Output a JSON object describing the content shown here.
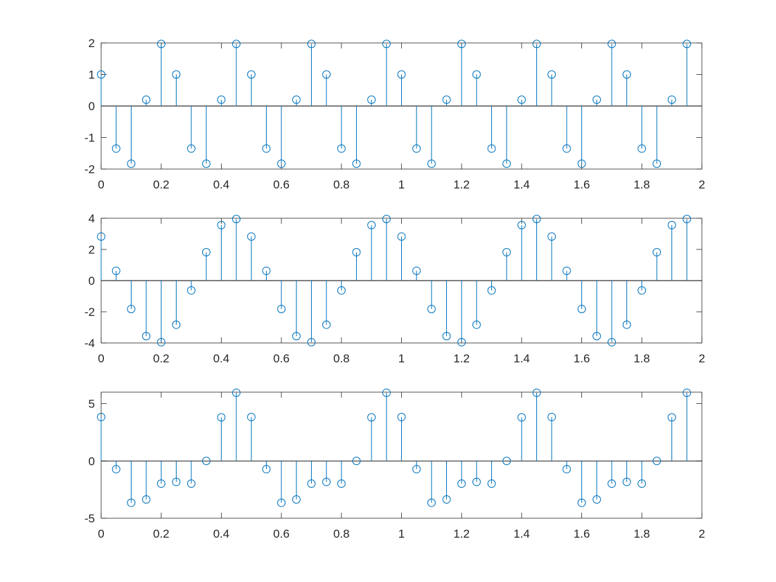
{
  "chart_data": [
    {
      "type": "stem",
      "title": "",
      "xlabel": "",
      "ylabel": "",
      "xlim": [
        0,
        2
      ],
      "ylim": [
        -2,
        2
      ],
      "xticks": [
        0,
        0.2,
        0.4,
        0.6,
        0.8,
        1,
        1.2,
        1.4,
        1.6,
        1.8,
        2
      ],
      "xtick_labels": [
        "0",
        "0.2",
        "0.4",
        "0.6",
        "0.8",
        "1",
        "1.2",
        "1.4",
        "1.6",
        "1.8",
        "2"
      ],
      "yticks": [
        -2,
        -1,
        0,
        1,
        2
      ],
      "ytick_labels": [
        "-2",
        "-1",
        "0",
        "1",
        "2"
      ],
      "grid": false,
      "series": [
        {
          "x": [
            0,
            0.05,
            0.1,
            0.15,
            0.2,
            0.25,
            0.3,
            0.35,
            0.4,
            0.45,
            0.5,
            0.55,
            0.6,
            0.65,
            0.7,
            0.75,
            0.8,
            0.85,
            0.9,
            0.95,
            1,
            1.05,
            1.1,
            1.15,
            1.2,
            1.25,
            1.3,
            1.35,
            1.4,
            1.45,
            1.5,
            1.55,
            1.6,
            1.65,
            1.7,
            1.75,
            1.8,
            1.85,
            1.9,
            1.95
          ],
          "values": [
            1,
            -1.35,
            -1.83,
            0.2,
            1.97,
            1,
            -1.35,
            -1.83,
            0.2,
            1.97,
            1,
            -1.35,
            -1.83,
            0.2,
            1.97,
            1,
            -1.35,
            -1.83,
            0.2,
            1.97,
            1,
            -1.35,
            -1.83,
            0.2,
            1.97,
            1,
            -1.35,
            -1.83,
            0.2,
            1.97,
            1,
            -1.35,
            -1.83,
            0.2,
            1.97,
            1,
            -1.35,
            -1.83,
            0.2,
            1.97
          ]
        }
      ]
    },
    {
      "type": "stem",
      "title": "",
      "xlabel": "",
      "ylabel": "",
      "xlim": [
        0,
        2
      ],
      "ylim": [
        -4,
        4
      ],
      "xticks": [
        0,
        0.2,
        0.4,
        0.6,
        0.8,
        1,
        1.2,
        1.4,
        1.6,
        1.8,
        2
      ],
      "xtick_labels": [
        "0",
        "0.2",
        "0.4",
        "0.6",
        "0.8",
        "1",
        "1.2",
        "1.4",
        "1.6",
        "1.8",
        "2"
      ],
      "yticks": [
        -4,
        -2,
        0,
        2,
        4
      ],
      "ytick_labels": [
        "-4",
        "-2",
        "0",
        "2",
        "4"
      ],
      "grid": false,
      "series": [
        {
          "x": [
            0,
            0.05,
            0.1,
            0.15,
            0.2,
            0.25,
            0.3,
            0.35,
            0.4,
            0.45,
            0.5,
            0.55,
            0.6,
            0.65,
            0.7,
            0.75,
            0.8,
            0.85,
            0.9,
            0.95,
            1,
            1.05,
            1.1,
            1.15,
            1.2,
            1.25,
            1.3,
            1.35,
            1.4,
            1.45,
            1.5,
            1.55,
            1.6,
            1.65,
            1.7,
            1.75,
            1.8,
            1.85,
            1.9,
            1.95
          ],
          "values": [
            2.83,
            0.63,
            -1.82,
            -3.56,
            -3.95,
            -2.83,
            -0.63,
            1.82,
            3.56,
            3.95,
            2.83,
            0.63,
            -1.82,
            -3.56,
            -3.95,
            -2.83,
            -0.63,
            1.82,
            3.56,
            3.95,
            2.83,
            0.63,
            -1.82,
            -3.56,
            -3.95,
            -2.83,
            -0.63,
            1.82,
            3.56,
            3.95,
            2.83,
            0.63,
            -1.82,
            -3.56,
            -3.95,
            -2.83,
            -0.63,
            1.82,
            3.56,
            3.95
          ]
        }
      ]
    },
    {
      "type": "stem",
      "title": "",
      "xlabel": "",
      "ylabel": "",
      "xlim": [
        0,
        2
      ],
      "ylim": [
        -5,
        6
      ],
      "xticks": [
        0,
        0.2,
        0.4,
        0.6,
        0.8,
        1,
        1.2,
        1.4,
        1.6,
        1.8,
        2
      ],
      "xtick_labels": [
        "0",
        "0.2",
        "0.4",
        "0.6",
        "0.8",
        "1",
        "1.2",
        "1.4",
        "1.6",
        "1.8",
        "2"
      ],
      "yticks": [
        -5,
        0,
        5
      ],
      "ytick_labels": [
        "-5",
        "0",
        "5"
      ],
      "grid": false,
      "series": [
        {
          "x": [
            0,
            0.05,
            0.1,
            0.15,
            0.2,
            0.25,
            0.3,
            0.35,
            0.4,
            0.45,
            0.5,
            0.55,
            0.6,
            0.65,
            0.7,
            0.75,
            0.8,
            0.85,
            0.9,
            0.95,
            1,
            1.05,
            1.1,
            1.15,
            1.2,
            1.25,
            1.3,
            1.35,
            1.4,
            1.45,
            1.5,
            1.55,
            1.6,
            1.65,
            1.7,
            1.75,
            1.8,
            1.85,
            1.9,
            1.95
          ],
          "values": [
            3.83,
            -0.72,
            -3.65,
            -3.36,
            -1.98,
            -1.83,
            -1.98,
            0,
            3.8,
            5.95,
            3.83,
            -0.72,
            -3.65,
            -3.36,
            -1.98,
            -1.83,
            -1.98,
            0,
            3.8,
            5.95,
            3.83,
            -0.72,
            -3.65,
            -3.36,
            -1.98,
            -1.83,
            -1.98,
            0,
            3.8,
            5.95,
            3.83,
            -0.72,
            -3.65,
            -3.36,
            -1.98,
            -1.83,
            -1.98,
            0,
            3.8,
            5.95
          ]
        }
      ]
    }
  ],
  "colors": {
    "stem": "#0072bd",
    "axes": "#262626",
    "baseline": "#000000"
  }
}
